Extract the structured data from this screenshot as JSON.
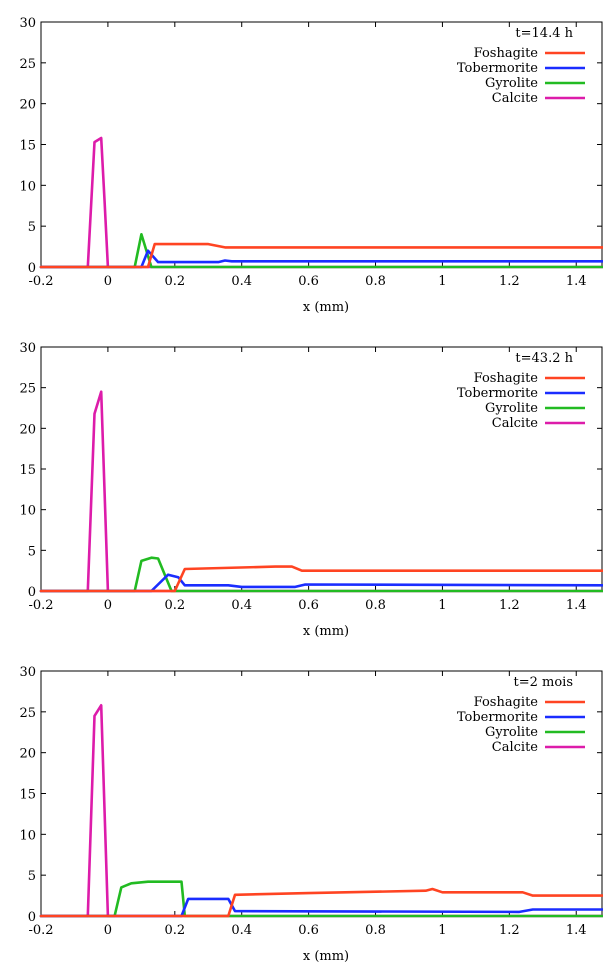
{
  "chart_data": [
    {
      "type": "line",
      "title": "t=14.4 h",
      "xlabel": "x (mm)",
      "ylabel": "",
      "xlim": [
        -0.2,
        1.48
      ],
      "ylim": [
        0,
        30
      ],
      "xticks": [
        "-0.2",
        "0",
        "0.2",
        "0.4",
        "0.6",
        "0.8",
        "1",
        "1.2",
        "1.4"
      ],
      "yticks": [
        "0",
        "5",
        "10",
        "15",
        "20",
        "25",
        "30"
      ],
      "legend_position": "top-right",
      "series": [
        {
          "name": "Foshagite",
          "color": "#ff4422",
          "x": [
            -0.2,
            0.12,
            0.14,
            0.3,
            0.35,
            1.48
          ],
          "y": [
            0,
            0,
            2.8,
            2.8,
            2.4,
            2.4
          ]
        },
        {
          "name": "Tobermorite",
          "color": "#1a2dff",
          "x": [
            -0.2,
            0.1,
            0.12,
            0.15,
            0.33,
            0.35,
            0.37,
            1.48
          ],
          "y": [
            0,
            0,
            2.0,
            0.6,
            0.6,
            0.8,
            0.7,
            0.7
          ]
        },
        {
          "name": "Gyrolite",
          "color": "#22bb22",
          "x": [
            -0.2,
            0.08,
            0.1,
            0.13,
            1.48
          ],
          "y": [
            0,
            0,
            4.0,
            0,
            0
          ]
        },
        {
          "name": "Calcite",
          "color": "#dd1caa",
          "x": [
            -0.2,
            -0.06,
            -0.04,
            -0.02,
            -0.01,
            0.0,
            1.48
          ],
          "y": [
            0,
            0,
            15.3,
            15.8,
            8.0,
            0,
            0
          ]
        }
      ]
    },
    {
      "type": "line",
      "title": "t=43.2 h",
      "xlabel": "x (mm)",
      "ylabel": "",
      "xlim": [
        -0.2,
        1.48
      ],
      "ylim": [
        0,
        30
      ],
      "xticks": [
        "-0.2",
        "0",
        "0.2",
        "0.4",
        "0.6",
        "0.8",
        "1",
        "1.2",
        "1.4"
      ],
      "yticks": [
        "0",
        "5",
        "10",
        "15",
        "20",
        "25",
        "30"
      ],
      "legend_position": "top-right",
      "series": [
        {
          "name": "Foshagite",
          "color": "#ff4422",
          "x": [
            -0.2,
            0.2,
            0.23,
            0.5,
            0.55,
            0.58,
            1.48
          ],
          "y": [
            0,
            0,
            2.7,
            3.0,
            3.0,
            2.5,
            2.5
          ]
        },
        {
          "name": "Tobermorite",
          "color": "#1a2dff",
          "x": [
            -0.2,
            0.13,
            0.18,
            0.21,
            0.23,
            0.36,
            0.4,
            0.56,
            0.59,
            1.48
          ],
          "y": [
            0,
            0,
            2.0,
            1.7,
            0.7,
            0.7,
            0.5,
            0.5,
            0.8,
            0.7
          ]
        },
        {
          "name": "Gyrolite",
          "color": "#22bb22",
          "x": [
            -0.2,
            0.08,
            0.1,
            0.13,
            0.15,
            0.19,
            1.48
          ],
          "y": [
            0,
            0,
            3.7,
            4.1,
            4.0,
            0,
            0
          ]
        },
        {
          "name": "Calcite",
          "color": "#dd1caa",
          "x": [
            -0.2,
            -0.06,
            -0.04,
            -0.02,
            0.0,
            1.48
          ],
          "y": [
            0,
            0,
            21.8,
            24.5,
            0,
            0
          ]
        }
      ]
    },
    {
      "type": "line",
      "title": "t=2 mois",
      "xlabel": "x (mm)",
      "ylabel": "",
      "xlim": [
        -0.2,
        1.48
      ],
      "ylim": [
        0,
        30
      ],
      "xticks": [
        "-0.2",
        "0",
        "0.2",
        "0.4",
        "0.6",
        "0.8",
        "1",
        "1.2",
        "1.4"
      ],
      "yticks": [
        "0",
        "5",
        "10",
        "15",
        "20",
        "25",
        "30"
      ],
      "legend_position": "top-right",
      "series": [
        {
          "name": "Foshagite",
          "color": "#ff4422",
          "x": [
            -0.2,
            0.36,
            0.38,
            0.6,
            0.95,
            0.97,
            1.0,
            1.24,
            1.27,
            1.48
          ],
          "y": [
            0,
            0,
            2.6,
            2.8,
            3.1,
            3.3,
            2.9,
            2.9,
            2.5,
            2.5
          ]
        },
        {
          "name": "Tobermorite",
          "color": "#1a2dff",
          "x": [
            -0.2,
            0.22,
            0.24,
            0.36,
            0.38,
            1.23,
            1.27,
            1.48
          ],
          "y": [
            0,
            0,
            2.1,
            2.1,
            0.6,
            0.5,
            0.8,
            0.8
          ]
        },
        {
          "name": "Gyrolite",
          "color": "#22bb22",
          "x": [
            -0.2,
            0.02,
            0.04,
            0.07,
            0.12,
            0.22,
            0.23,
            1.48
          ],
          "y": [
            0,
            0,
            3.5,
            4.0,
            4.2,
            4.2,
            0,
            0
          ]
        },
        {
          "name": "Calcite",
          "color": "#dd1caa",
          "x": [
            -0.2,
            -0.06,
            -0.04,
            -0.02,
            0.0,
            1.48
          ],
          "y": [
            0,
            0,
            24.5,
            25.8,
            0,
            0
          ]
        }
      ]
    }
  ]
}
